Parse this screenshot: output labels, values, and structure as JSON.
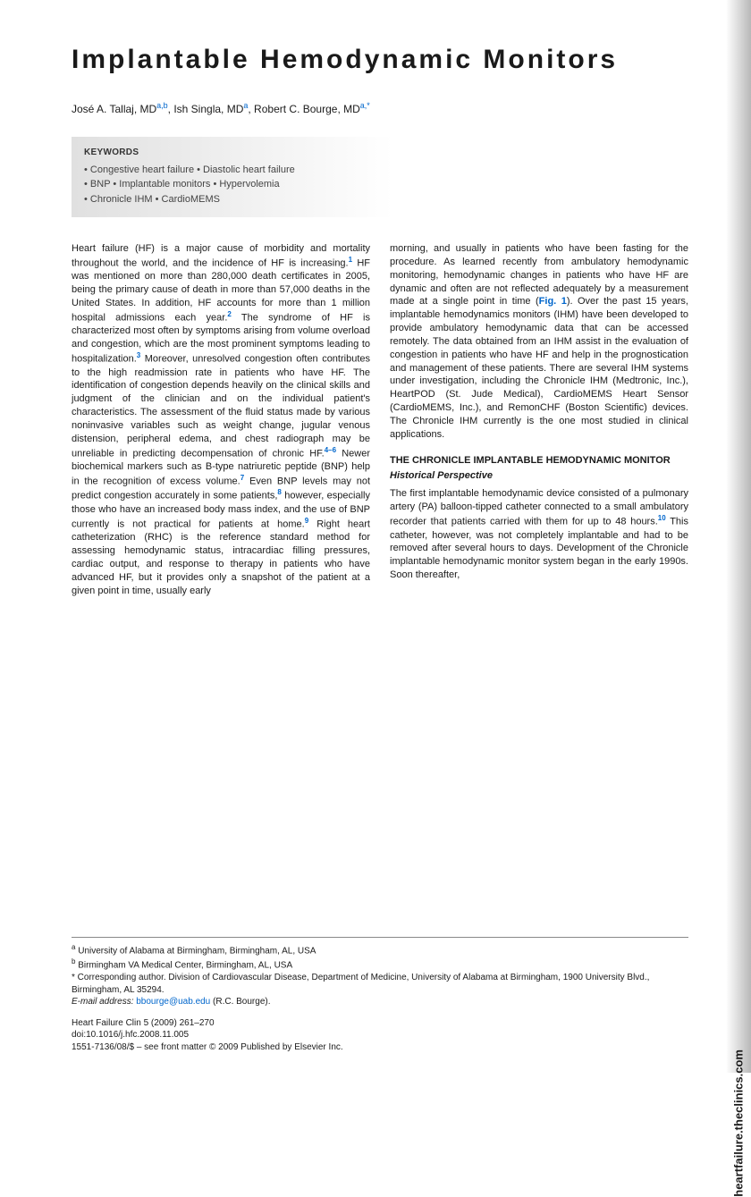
{
  "title": "Implantable Hemodynamic Monitors",
  "authors_html": "José A. Tallaj, MD",
  "author1_sup": "a,b",
  "author2": ", Ish Singla, MD",
  "author2_sup": "a",
  "author3": ", Robert C. Bourge, MD",
  "author3_sup": "a,*",
  "keywords_label": "KEYWORDS",
  "keywords": "• Congestive heart failure • Diastolic heart failure\n• BNP • Implantable monitors • Hypervolemia\n• Chronicle IHM • CardioMEMS",
  "col1_p1a": "Heart failure (HF) is a major cause of morbidity and mortality throughout the world, and the incidence of HF is increasing.",
  "ref1": "1",
  "col1_p1b": " HF was mentioned on more than 280,000 death certificates in 2005, being the primary cause of death in more than 57,000 deaths in the United States. In addition, HF accounts for more than 1 million hospital admissions each year.",
  "ref2": "2",
  "col1_p1c": " The syndrome of HF is characterized most often by symptoms arising from volume overload and congestion, which are the most prominent symptoms leading to hospitalization.",
  "ref3": "3",
  "col1_p1d": " Moreover, unresolved congestion often contributes to the high readmission rate in patients who have HF. The identification of congestion depends heavily on the clinical skills and judgment of the clinician and on the individual patient's characteristics. The assessment of the fluid status made by various noninvasive variables such as weight change, jugular venous distension, peripheral edema, and chest radiograph may be unreliable in predicting decompensation of chronic HF.",
  "ref46": "4–6",
  "col1_p1e": " Newer biochemical markers such as B-type natriuretic peptide (BNP) help in the recognition of excess volume.",
  "ref7": "7",
  "col1_p1f": " Even BNP levels may not predict congestion accurately in some patients,",
  "ref8": "8",
  "col1_p1g": " however, especially those who have an increased body mass index, and the use of BNP currently is not practical for patients at home.",
  "ref9": "9",
  "col1_p1h": " Right heart catheterization (RHC) is the reference standard method for assessing hemodynamic status, intracardiac filling pressures, cardiac output, and response to therapy in patients who have advanced HF, but it provides only a snapshot of the patient at a given point in time, usually early",
  "col2_p1a": "morning, and usually in patients who have been fasting for the procedure. As learned recently from ambulatory hemodynamic monitoring, hemodynamic changes in patients who have HF are dynamic and often are not reflected adequately by a measurement made at a single point in time (",
  "fig1": "Fig. 1",
  "col2_p1b": "). Over the past 15 years, implantable hemodynamics monitors (IHM) have been developed to provide ambulatory hemodynamic data that can be accessed remotely. The data obtained from an IHM assist in the evaluation of congestion in patients who have HF and help in the prognostication and management of these patients. There are several IHM systems under investigation, including the Chronicle IHM (Medtronic, Inc.), HeartPOD (St. Jude Medical), CardioMEMS Heart Sensor (CardioMEMS, Inc.), and RemonCHF (Boston Scientific) devices. The Chronicle IHM currently is the one most studied in clinical applications.",
  "section_head": "THE CHRONICLE IMPLANTABLE HEMODYNAMIC MONITOR",
  "subhead": "Historical Perspective",
  "col2_p2a": "The first implantable hemodynamic device consisted of a pulmonary artery (PA) balloon-tipped catheter connected to a small ambulatory recorder that patients carried with them for up to 48 hours.",
  "ref10": "10",
  "col2_p2b": " This catheter, however, was not completely implantable and had to be removed after several hours to days. Development of the Chronicle implantable hemodynamic monitor system began in the early 1990s. Soon thereafter,",
  "affil_a": "University of Alabama at Birmingham, Birmingham, AL, USA",
  "affil_b": "Birmingham VA Medical Center, Birmingham, AL, USA",
  "corr": "* Corresponding author. Division of Cardiovascular Disease, Department of Medicine, University of Alabama at Birmingham, 1900 University Blvd., Birmingham, AL 35294.",
  "email_label": "E-mail address:",
  "email": "bbourge@uab.edu",
  "email_suffix": " (R.C. Bourge).",
  "journal": "Heart Failure Clin 5 (2009) 261–270",
  "doi": "doi:10.1016/j.hfc.2008.11.005",
  "copyright": "1551-7136/08/$ – see front matter © 2009 Published by Elsevier Inc.",
  "side_text": "heartfailure.theclinics.com"
}
